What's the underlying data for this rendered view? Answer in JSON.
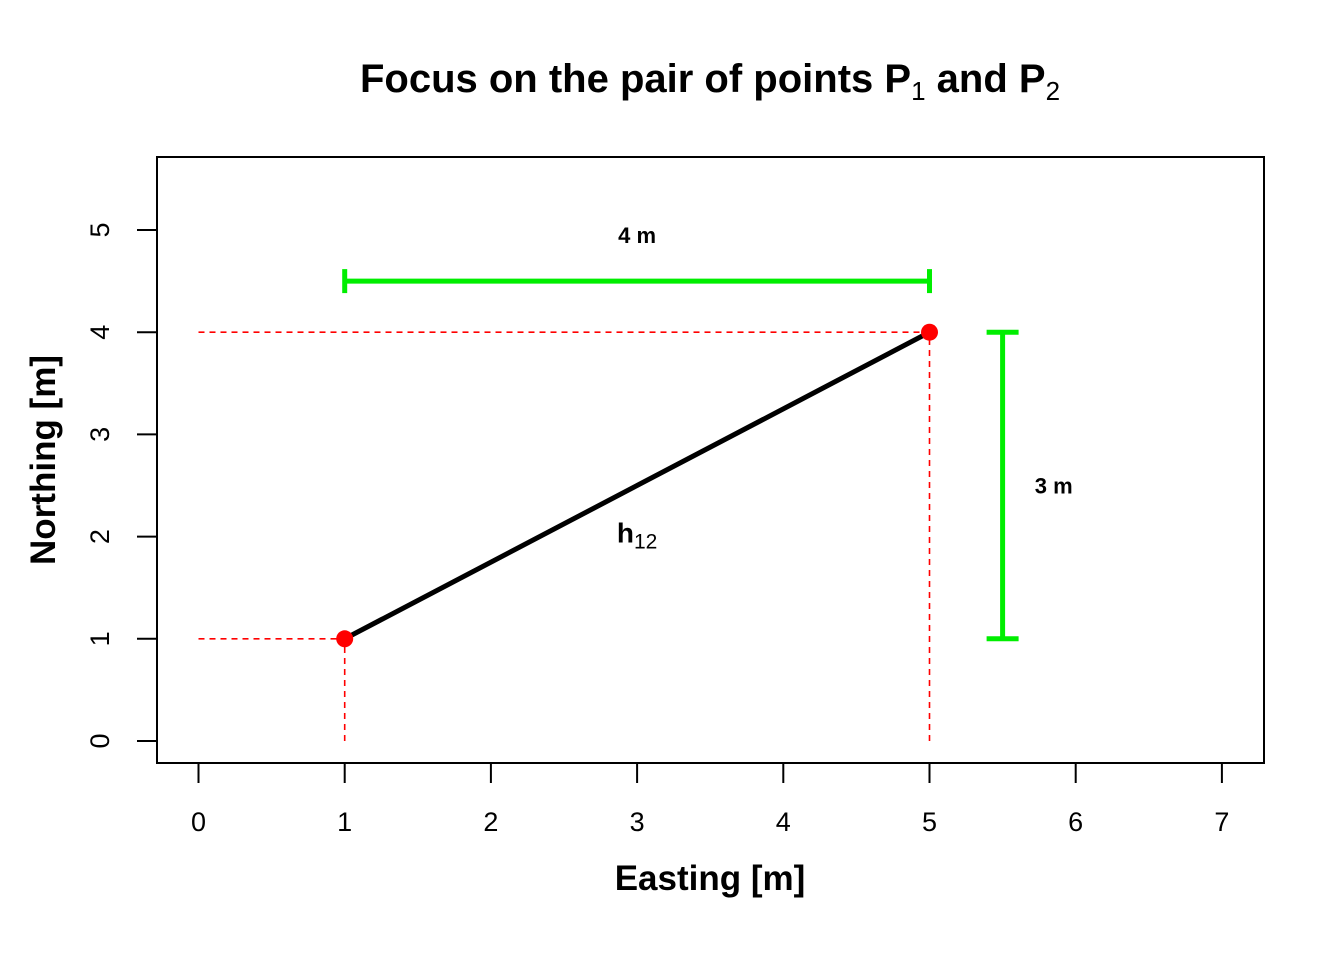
{
  "chart_data": {
    "type": "scatter",
    "title": {
      "prefix": "Focus on the pair of points P",
      "sub1": "1",
      "middle": " and P",
      "sub2": "2"
    },
    "xlabel": "Easting [m]",
    "ylabel": "Northing [m]",
    "xlim": [
      -0.3,
      7.3
    ],
    "ylim": [
      -0.2,
      5.75
    ],
    "x_ticks": [
      0,
      1,
      2,
      3,
      4,
      5,
      6,
      7
    ],
    "y_ticks": [
      0,
      1,
      2,
      3,
      4,
      5
    ],
    "x_tick_labels": [
      "0",
      "1",
      "2",
      "3",
      "4",
      "5",
      "6",
      "7"
    ],
    "y_tick_labels": [
      "0",
      "1",
      "2",
      "3",
      "4",
      "5"
    ],
    "points": [
      {
        "x": 1,
        "y": 1
      },
      {
        "x": 5,
        "y": 4
      }
    ],
    "segment": {
      "x1": 1,
      "y1": 1,
      "x2": 5,
      "y2": 4
    },
    "segment_label": {
      "main": "h",
      "sub": "12",
      "x": 3,
      "y": 2
    },
    "horizontal_distance": {
      "x1": 1,
      "x2": 5,
      "y": 4.5,
      "label": "4 m",
      "label_x": 3,
      "label_y": 4.95
    },
    "vertical_distance": {
      "x": 5.5,
      "y1": 1,
      "y2": 4,
      "label": "3 m",
      "label_x": 5.85,
      "label_y": 2.5
    },
    "guide_lines": [
      {
        "x1": 0,
        "y1": 1,
        "x2": 1,
        "y2": 1
      },
      {
        "x1": 1,
        "y1": 0,
        "x2": 1,
        "y2": 1
      },
      {
        "x1": 0,
        "y1": 4,
        "x2": 5,
        "y2": 4
      },
      {
        "x1": 5,
        "y1": 0,
        "x2": 5,
        "y2": 4
      }
    ],
    "colors": {
      "points": "#ff0000",
      "guides": "#ff0000",
      "segment": "#000000",
      "distance_bars": "#00ee00",
      "axes": "#000000"
    },
    "grid": false,
    "legend": "none"
  }
}
